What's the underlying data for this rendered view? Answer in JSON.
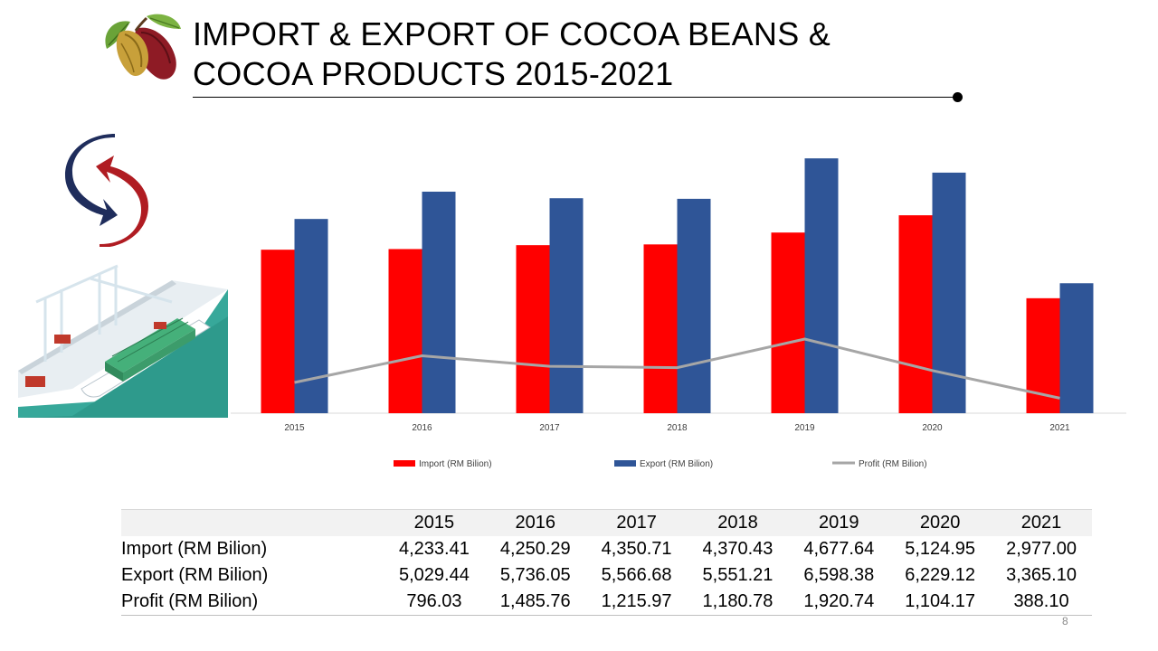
{
  "slide": {
    "title_line1": "IMPORT & EXPORT OF COCOA BEANS &",
    "title_line2": "COCOA PRODUCTS 2015-2021",
    "page_number": "8"
  },
  "icons": {
    "logo": "cocoa-pod-icon",
    "exchange": "exchange-arrows-icon",
    "port": "shipping-port-illustration"
  },
  "colors": {
    "import": "#ff0000",
    "export": "#2f5597",
    "profit": "#a6a6a6",
    "axis": "#d9d9d9",
    "tick": "#404040"
  },
  "chart_data": {
    "type": "bar",
    "title": "",
    "xlabel": "",
    "ylabel": "",
    "categories": [
      "2015",
      "2016",
      "2017",
      "2018",
      "2019",
      "2020",
      "2021"
    ],
    "ylim": [
      0,
      7000
    ],
    "grid": false,
    "legend_position": "bottom",
    "series": [
      {
        "name": "Import (RM Bilion)",
        "type": "bar",
        "values": [
          4233.41,
          4250.29,
          4350.71,
          4370.43,
          4677.64,
          5124.95,
          2977.0
        ]
      },
      {
        "name": "Export (RM Bilion)",
        "type": "bar",
        "values": [
          5029.44,
          5736.05,
          5566.68,
          5551.21,
          6598.38,
          6229.12,
          3365.1
        ]
      },
      {
        "name": "Profit (RM Bilion)",
        "type": "line",
        "values": [
          796.03,
          1485.76,
          1215.97,
          1180.78,
          1920.74,
          1104.17,
          388.1
        ]
      }
    ]
  },
  "table": {
    "header": [
      "",
      "2015",
      "2016",
      "2017",
      "2018",
      "2019",
      "2020",
      "2021"
    ],
    "rows": [
      {
        "label": "Import (RM Bilion)",
        "values": [
          "4,233.41",
          "4,250.29",
          "4,350.71",
          "4,370.43",
          "4,677.64",
          "5,124.95",
          "2,977.00"
        ]
      },
      {
        "label": "Export (RM Bilion)",
        "values": [
          "5,029.44",
          "5,736.05",
          "5,566.68",
          "5,551.21",
          "6,598.38",
          "6,229.12",
          "3,365.10"
        ]
      },
      {
        "label": "Profit (RM Bilion)",
        "values": [
          "796.03",
          "1,485.76",
          "1,215.97",
          "1,180.78",
          "1,920.74",
          "1,104.17",
          "388.10"
        ]
      }
    ]
  }
}
